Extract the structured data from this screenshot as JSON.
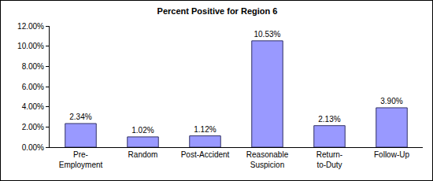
{
  "chart_data": {
    "type": "bar",
    "title": "Percent Positive for Region 6",
    "categories": [
      "Pre-Employment",
      "Random",
      "Post-Accident",
      "Reasonable Suspicion",
      "Return-to-Duty",
      "Follow-Up"
    ],
    "values": [
      2.34,
      1.02,
      1.12,
      10.53,
      2.13,
      3.9
    ],
    "value_labels": [
      "2.34%",
      "1.02%",
      "1.12%",
      "10.53%",
      "2.13%",
      "3.90%"
    ],
    "data_labels": true,
    "color": "#9999ff",
    "ylim": [
      0,
      12
    ],
    "yticks": [
      {
        "value": 0,
        "label": "0.00%"
      },
      {
        "value": 2,
        "label": "2.00%"
      },
      {
        "value": 4,
        "label": "4.00%"
      },
      {
        "value": 6,
        "label": "6.00%"
      },
      {
        "value": 8,
        "label": "8.00%"
      },
      {
        "value": 10,
        "label": "10.00%"
      },
      {
        "value": 12,
        "label": "12.00%"
      }
    ],
    "grid": false
  }
}
